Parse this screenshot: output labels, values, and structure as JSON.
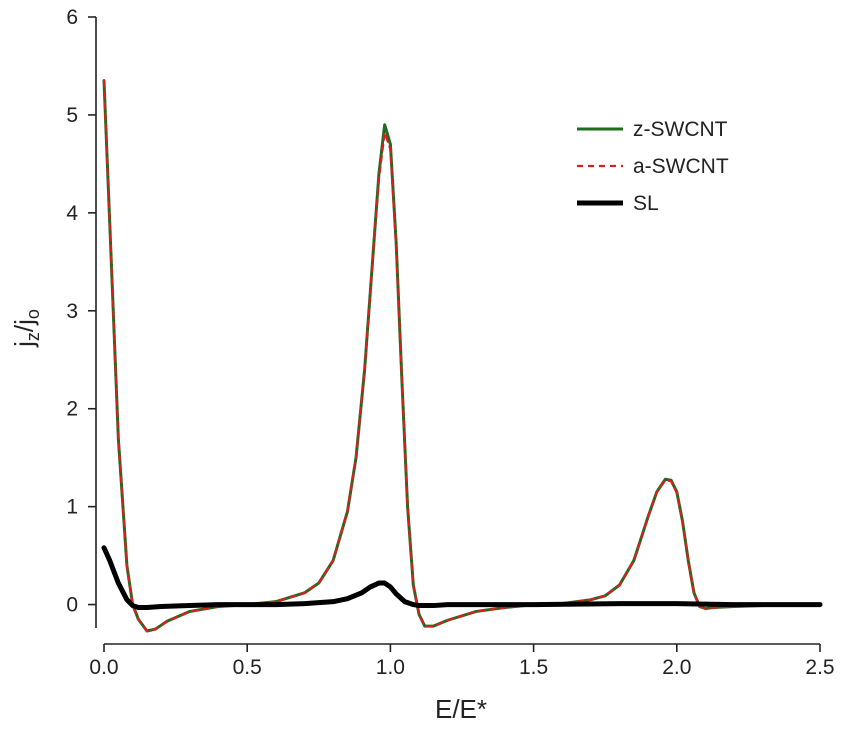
{
  "chart_data": {
    "type": "line",
    "xlabel": "E/E*",
    "ylabel": "jz/jo",
    "ylabel_parts": {
      "base1": "j",
      "sub1": "z",
      "sep": "/",
      "base2": "j",
      "sub2": "o"
    },
    "xlim": [
      0,
      2.5
    ],
    "ylim": [
      -0.28,
      6
    ],
    "xticks": [
      "0.0",
      "0.5",
      "1.0",
      "1.5",
      "2.0",
      "2.5"
    ],
    "yticks": [
      "0",
      "1",
      "2",
      "3",
      "4",
      "5",
      "6"
    ],
    "grid": false,
    "legend_position": "top-right",
    "series": [
      {
        "name": "z-SWCNT",
        "color": "#1f6b1f",
        "style": "solid",
        "x": [
          0.0,
          0.02,
          0.05,
          0.08,
          0.1,
          0.12,
          0.15,
          0.18,
          0.22,
          0.3,
          0.4,
          0.5,
          0.6,
          0.7,
          0.75,
          0.8,
          0.85,
          0.88,
          0.91,
          0.94,
          0.96,
          0.98,
          1.0,
          1.02,
          1.04,
          1.06,
          1.08,
          1.1,
          1.12,
          1.15,
          1.2,
          1.3,
          1.4,
          1.5,
          1.6,
          1.7,
          1.75,
          1.8,
          1.85,
          1.9,
          1.93,
          1.96,
          1.98,
          2.0,
          2.02,
          2.04,
          2.06,
          2.08,
          2.1,
          2.13,
          2.2,
          2.3,
          2.4,
          2.5
        ],
        "values": [
          5.35,
          3.9,
          1.7,
          0.4,
          0.0,
          -0.15,
          -0.27,
          -0.25,
          -0.17,
          -0.07,
          -0.02,
          0.0,
          0.03,
          0.12,
          0.22,
          0.45,
          0.95,
          1.5,
          2.4,
          3.6,
          4.4,
          4.9,
          4.7,
          3.7,
          2.3,
          1.0,
          0.2,
          -0.1,
          -0.22,
          -0.22,
          -0.16,
          -0.07,
          -0.03,
          0.0,
          0.01,
          0.05,
          0.09,
          0.2,
          0.45,
          0.9,
          1.15,
          1.28,
          1.27,
          1.15,
          0.85,
          0.45,
          0.12,
          -0.02,
          -0.04,
          -0.03,
          -0.02,
          -0.01,
          0.0,
          0.0
        ]
      },
      {
        "name": "a-SWCNT",
        "color": "#d62020",
        "style": "dashed",
        "x": [
          0.0,
          0.02,
          0.05,
          0.08,
          0.1,
          0.12,
          0.15,
          0.18,
          0.22,
          0.3,
          0.4,
          0.5,
          0.6,
          0.7,
          0.75,
          0.8,
          0.85,
          0.88,
          0.91,
          0.94,
          0.96,
          0.98,
          1.0,
          1.02,
          1.04,
          1.06,
          1.08,
          1.1,
          1.12,
          1.15,
          1.2,
          1.3,
          1.4,
          1.5,
          1.6,
          1.7,
          1.75,
          1.8,
          1.85,
          1.9,
          1.93,
          1.96,
          1.98,
          2.0,
          2.02,
          2.04,
          2.06,
          2.08,
          2.1,
          2.13,
          2.2,
          2.3,
          2.4,
          2.5
        ],
        "values": [
          5.35,
          3.9,
          1.7,
          0.4,
          0.0,
          -0.15,
          -0.27,
          -0.25,
          -0.17,
          -0.07,
          -0.02,
          0.0,
          0.03,
          0.12,
          0.22,
          0.45,
          0.95,
          1.5,
          2.4,
          3.6,
          4.35,
          4.82,
          4.65,
          3.65,
          2.3,
          1.0,
          0.2,
          -0.1,
          -0.22,
          -0.22,
          -0.16,
          -0.07,
          -0.03,
          0.0,
          0.01,
          0.05,
          0.09,
          0.2,
          0.45,
          0.9,
          1.15,
          1.27,
          1.26,
          1.14,
          0.84,
          0.45,
          0.12,
          -0.02,
          -0.04,
          -0.03,
          -0.02,
          -0.01,
          0.0,
          0.0
        ]
      },
      {
        "name": "SL",
        "color": "#000000",
        "style": "thick",
        "x": [
          0.0,
          0.02,
          0.05,
          0.08,
          0.1,
          0.12,
          0.15,
          0.2,
          0.3,
          0.4,
          0.5,
          0.6,
          0.7,
          0.8,
          0.85,
          0.9,
          0.93,
          0.96,
          0.98,
          1.0,
          1.02,
          1.05,
          1.08,
          1.1,
          1.12,
          1.15,
          1.2,
          1.3,
          1.5,
          1.8,
          2.0,
          2.2,
          2.5
        ],
        "values": [
          0.58,
          0.45,
          0.22,
          0.05,
          -0.01,
          -0.03,
          -0.03,
          -0.02,
          -0.01,
          0.0,
          0.0,
          0.0,
          0.01,
          0.03,
          0.06,
          0.12,
          0.18,
          0.22,
          0.22,
          0.18,
          0.11,
          0.03,
          0.0,
          -0.01,
          -0.01,
          -0.01,
          0.0,
          0.0,
          0.0,
          0.01,
          0.01,
          0.0,
          0.0
        ]
      }
    ]
  }
}
